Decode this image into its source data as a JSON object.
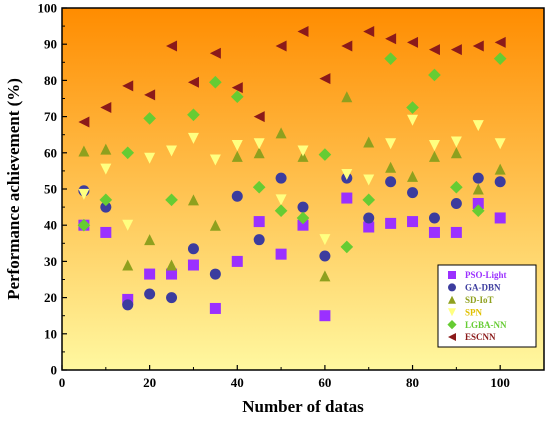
{
  "chart_data": {
    "type": "scatter",
    "xlabel": "Number of datas",
    "ylabel": "Performance achievement (%)",
    "xlim": [
      0,
      110
    ],
    "ylim": [
      0,
      100
    ],
    "xticks": [
      0,
      20,
      40,
      60,
      80,
      100
    ],
    "yticks": [
      0,
      10,
      20,
      30,
      40,
      50,
      60,
      70,
      80,
      90,
      100
    ],
    "grid": false,
    "legend_position": "bottom-right",
    "background_gradient": [
      "#FF8C00",
      "#FFF8A0"
    ],
    "series": [
      {
        "name": "PSO-Light",
        "marker": "square",
        "color": "#9B30FF",
        "x": [
          5,
          10,
          15,
          20,
          25,
          30,
          35,
          40,
          45,
          50,
          55,
          60,
          65,
          70,
          75,
          80,
          85,
          90,
          95,
          100
        ],
        "y": [
          40,
          38,
          19.5,
          26.5,
          26.5,
          29,
          17,
          30,
          41,
          32,
          40,
          15,
          47.5,
          39.5,
          40.5,
          41,
          38,
          38,
          46,
          42
        ]
      },
      {
        "name": "GA-DBN",
        "marker": "circle",
        "color": "#3C3C9E",
        "x": [
          5,
          10,
          15,
          20,
          25,
          30,
          35,
          40,
          45,
          50,
          55,
          60,
          65,
          70,
          75,
          80,
          85,
          90,
          95,
          100
        ],
        "y": [
          49.5,
          45,
          18,
          21,
          20,
          33.5,
          26.5,
          48,
          36,
          53,
          45,
          31.5,
          53,
          42,
          52,
          49,
          42,
          46,
          53,
          52
        ]
      },
      {
        "name": "SD-IoT",
        "marker": "triangle-up",
        "color": "#8FA01E",
        "x": [
          5,
          10,
          15,
          20,
          25,
          30,
          35,
          40,
          45,
          50,
          55,
          60,
          65,
          70,
          75,
          80,
          85,
          90,
          95,
          100
        ],
        "y": [
          60.5,
          61,
          29,
          36,
          29,
          47,
          40,
          59,
          60,
          65.5,
          59,
          26,
          75.5,
          63,
          56,
          53.5,
          59,
          60,
          50,
          55.5
        ]
      },
      {
        "name": "SPN",
        "marker": "triangle-down",
        "color": "#FFFF80",
        "x": [
          5,
          10,
          15,
          20,
          25,
          30,
          35,
          40,
          45,
          50,
          55,
          60,
          65,
          70,
          75,
          80,
          85,
          90,
          95,
          100
        ],
        "y": [
          48.5,
          55.5,
          40,
          58.5,
          60.5,
          64,
          58,
          62,
          62.5,
          47,
          60.5,
          36,
          54,
          52.5,
          62.5,
          69,
          62,
          63,
          67.5,
          62.5
        ]
      },
      {
        "name": "LGBA-NN",
        "marker": "diamond",
        "color": "#66CC33",
        "x": [
          5,
          10,
          15,
          20,
          25,
          30,
          35,
          40,
          45,
          50,
          55,
          60,
          65,
          70,
          75,
          80,
          85,
          90,
          95,
          100
        ],
        "y": [
          40,
          47,
          60,
          69.5,
          47,
          70.5,
          79.5,
          75.5,
          50.5,
          44,
          42,
          59.5,
          34,
          47,
          86,
          72.5,
          81.5,
          50.5,
          44,
          86
        ]
      },
      {
        "name": "ESCNN",
        "marker": "triangle-left",
        "color": "#8B1A1A",
        "x": [
          5,
          10,
          15,
          20,
          25,
          30,
          35,
          40,
          45,
          50,
          55,
          60,
          65,
          70,
          75,
          80,
          85,
          90,
          95,
          100
        ],
        "y": [
          68.5,
          72.5,
          78.5,
          76,
          89.5,
          79.5,
          87.5,
          78,
          70,
          89.5,
          93.5,
          80.5,
          89.5,
          93.5,
          91.5,
          90.5,
          88.5,
          88.5,
          89.5,
          90.5
        ]
      }
    ]
  }
}
